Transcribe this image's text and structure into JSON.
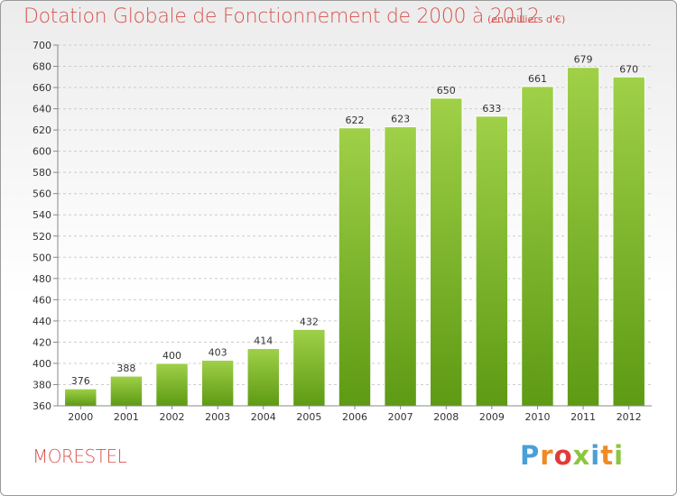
{
  "header": {
    "title": "Dotation Globale de Fonctionnement de 2000 à 2012",
    "unit": "(en milliers d'€)"
  },
  "footer": {
    "commune": "MORESTEL",
    "logo_text": "Proxiti",
    "logo_colors": [
      "#4a9fd8",
      "#f08a24",
      "#e23a3a",
      "#8cc63f",
      "#4a9fd8",
      "#f08a24"
    ]
  },
  "colors": {
    "title": "#d9534f",
    "bar_top": "#9fd048",
    "bar_bottom": "#5e9a14",
    "grid": "#cccccc",
    "axis_text": "#333333"
  },
  "chart_data": {
    "type": "bar",
    "title": "Dotation Globale de Fonctionnement de 2000 à 2012",
    "xlabel": "",
    "ylabel": "",
    "categories": [
      "2000",
      "2001",
      "2002",
      "2003",
      "2004",
      "2005",
      "2006",
      "2007",
      "2008",
      "2009",
      "2010",
      "2011",
      "2012"
    ],
    "values": [
      376,
      388,
      400,
      403,
      414,
      432,
      622,
      623,
      650,
      633,
      661,
      679,
      670
    ],
    "ylim": [
      360,
      700
    ],
    "yticks": [
      360,
      380,
      400,
      420,
      440,
      460,
      480,
      500,
      520,
      540,
      560,
      580,
      600,
      620,
      640,
      660,
      680,
      700
    ],
    "grid": true,
    "data_labels": true
  }
}
